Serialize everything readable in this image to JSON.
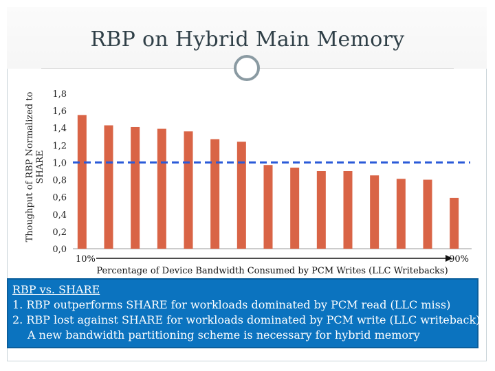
{
  "slide": {
    "title": "RBP on Hybrid Main Memory"
  },
  "chart_data": {
    "type": "bar",
    "ylabel": "Thoughput of RBP Normalized to SHARE",
    "xlabel": "Percentage of Device Bandwidth Consumed by PCM Writes (LLC Writebacks)",
    "x_start_label": "10%",
    "x_end_label": "90%",
    "ylim": [
      0,
      1.8
    ],
    "yticks": [
      "0,0",
      "0,2",
      "0,4",
      "0,6",
      "0,8",
      "1,0",
      "1,2",
      "1,4",
      "1,6",
      "1,8"
    ],
    "values": [
      1.55,
      1.43,
      1.41,
      1.39,
      1.36,
      1.27,
      1.24,
      0.97,
      0.94,
      0.9,
      0.9,
      0.85,
      0.81,
      0.8,
      0.59
    ],
    "reference_line": 1.0,
    "bar_color": "#d96446",
    "reference_color": "#2a5ad8",
    "grid": false
  },
  "infobox": {
    "heading": "RBP vs. SHARE",
    "line1": "1.  RBP outperforms SHARE for workloads dominated by PCM read (LLC miss)",
    "line2": "2. RBP lost against SHARE for workloads dominated by PCM write (LLC writeback)",
    "line3": "A new bandwidth partitioning scheme is necessary for hybrid memory",
    "background": "#0b73bf"
  }
}
